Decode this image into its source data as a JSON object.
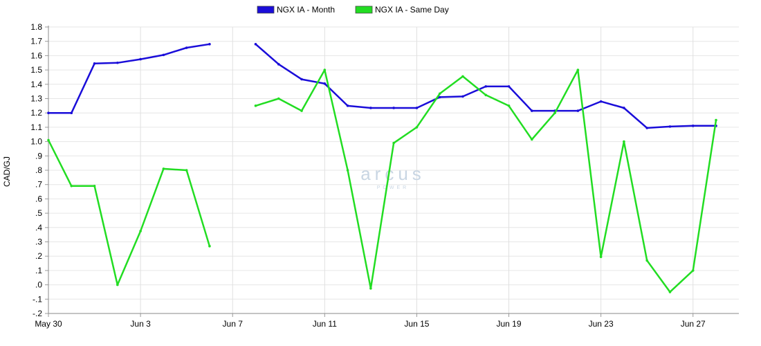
{
  "chart_data": {
    "type": "line",
    "title": "",
    "xlabel": "",
    "ylabel": "CAD/GJ",
    "ylim": [
      -0.2,
      1.8
    ],
    "y_ticks": [
      {
        "value": -0.2,
        "label": "-.2"
      },
      {
        "value": -0.1,
        "label": "-.1"
      },
      {
        "value": 0.0,
        "label": ".0"
      },
      {
        "value": 0.1,
        "label": ".1"
      },
      {
        "value": 0.2,
        "label": ".2"
      },
      {
        "value": 0.3,
        "label": ".3"
      },
      {
        "value": 0.4,
        "label": ".4"
      },
      {
        "value": 0.5,
        "label": ".5"
      },
      {
        "value": 0.6,
        "label": ".6"
      },
      {
        "value": 0.7,
        "label": ".7"
      },
      {
        "value": 0.8,
        "label": ".8"
      },
      {
        "value": 0.9,
        "label": ".9"
      },
      {
        "value": 1.0,
        "label": "1.0"
      },
      {
        "value": 1.1,
        "label": "1.1"
      },
      {
        "value": 1.2,
        "label": "1.2"
      },
      {
        "value": 1.3,
        "label": "1.3"
      },
      {
        "value": 1.4,
        "label": "1.4"
      },
      {
        "value": 1.5,
        "label": "1.5"
      },
      {
        "value": 1.6,
        "label": "1.6"
      },
      {
        "value": 1.7,
        "label": "1.7"
      },
      {
        "value": 1.8,
        "label": "1.8"
      }
    ],
    "x_range": [
      "May 30",
      "Jun 28"
    ],
    "x_tick_labels": [
      "May 30",
      "Jun 3",
      "Jun 7",
      "Jun 11",
      "Jun 15",
      "Jun 19",
      "Jun 23",
      "Jun 27"
    ],
    "x": [
      "May 30",
      "May 31",
      "Jun 1",
      "Jun 2",
      "Jun 3",
      "Jun 4",
      "Jun 5",
      "Jun 6",
      "Jun 7",
      "Jun 8",
      "Jun 9",
      "Jun 10",
      "Jun 11",
      "Jun 12",
      "Jun 13",
      "Jun 14",
      "Jun 15",
      "Jun 16",
      "Jun 17",
      "Jun 18",
      "Jun 19",
      "Jun 20",
      "Jun 21",
      "Jun 22",
      "Jun 23",
      "Jun 24",
      "Jun 25",
      "Jun 26",
      "Jun 27",
      "Jun 28"
    ],
    "grid": true,
    "legend_position": "top-center",
    "series": [
      {
        "name": "NGX IA - Month",
        "color": "#1a0dd9",
        "values": [
          1.2,
          1.2,
          1.545,
          1.55,
          1.575,
          1.605,
          1.655,
          1.68,
          null,
          1.68,
          1.54,
          1.435,
          1.405,
          1.25,
          1.235,
          1.235,
          1.235,
          1.31,
          1.315,
          1.385,
          1.385,
          1.215,
          1.215,
          1.215,
          1.28,
          1.235,
          1.095,
          1.105,
          1.11,
          1.11
        ]
      },
      {
        "name": "NGX IA - Same Day",
        "color": "#22dd22",
        "values": [
          1.01,
          0.69,
          0.69,
          0.0,
          0.375,
          0.81,
          0.8,
          0.27,
          null,
          1.25,
          1.3,
          1.215,
          1.5,
          0.8,
          -0.025,
          0.99,
          1.1,
          1.335,
          1.455,
          1.325,
          1.25,
          1.015,
          1.2,
          1.5,
          0.195,
          1.0,
          0.17,
          -0.05,
          0.1,
          1.15
        ]
      }
    ]
  }
}
